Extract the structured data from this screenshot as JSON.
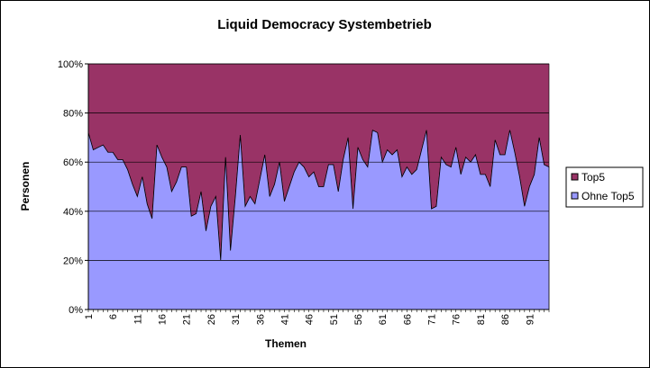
{
  "chart_data": {
    "type": "area",
    "stacked": "percent",
    "title": "Liquid Democracy Systembetrieb",
    "xlabel": "Themen",
    "ylabel": "Personen",
    "ylim": [
      0,
      100
    ],
    "y_ticks": [
      "0%",
      "20%",
      "40%",
      "60%",
      "80%",
      "100%"
    ],
    "x_tick_labels": [
      "1",
      "6",
      "11",
      "16",
      "21",
      "26",
      "31",
      "36",
      "41",
      "46",
      "51",
      "56",
      "61",
      "66",
      "71",
      "76",
      "81",
      "86",
      "91"
    ],
    "x_tick_step": 5,
    "grid": "horizontal major gridlines",
    "plot_background": "#c0c0c0",
    "legend_position": "right",
    "x": [
      1,
      2,
      3,
      4,
      5,
      6,
      7,
      8,
      9,
      10,
      11,
      12,
      13,
      14,
      15,
      16,
      17,
      18,
      19,
      20,
      21,
      22,
      23,
      24,
      25,
      26,
      27,
      28,
      29,
      30,
      31,
      32,
      33,
      34,
      35,
      36,
      37,
      38,
      39,
      40,
      41,
      42,
      43,
      44,
      45,
      46,
      47,
      48,
      49,
      50,
      51,
      52,
      53,
      54,
      55,
      56,
      57,
      58,
      59,
      60,
      61,
      62,
      63,
      64,
      65,
      66,
      67,
      68,
      69,
      70,
      71,
      72,
      73,
      74,
      75,
      76,
      77,
      78,
      79,
      80,
      81,
      82,
      83,
      84,
      85,
      86,
      87,
      88,
      89,
      90,
      91,
      92,
      93,
      94,
      95
    ],
    "series": [
      {
        "name": "Ohne Top5",
        "color": "#9999ff",
        "values": [
          72,
          65,
          66,
          67,
          64,
          64,
          61,
          61,
          57,
          51,
          46,
          54,
          43,
          37,
          67,
          62,
          58,
          48,
          52,
          58,
          58,
          38,
          39,
          48,
          32,
          42,
          46,
          20,
          62,
          24,
          46,
          71,
          42,
          46,
          43,
          53,
          63,
          46,
          51,
          60,
          44,
          50,
          56,
          60,
          58,
          54,
          56,
          50,
          50,
          59,
          59,
          48,
          61,
          70,
          41,
          66,
          61,
          58,
          73,
          72,
          60,
          65,
          63,
          65,
          54,
          58,
          55,
          57,
          65,
          73,
          41,
          42,
          62,
          59,
          58,
          66,
          55,
          62,
          60,
          63,
          55,
          55,
          50,
          69,
          63,
          63,
          73,
          64,
          54,
          42,
          50,
          55,
          70,
          59,
          58
        ]
      },
      {
        "name": "Top5",
        "color": "#993366",
        "values": [
          28,
          35,
          34,
          33,
          36,
          36,
          39,
          39,
          43,
          49,
          54,
          46,
          57,
          63,
          33,
          38,
          42,
          52,
          48,
          42,
          42,
          62,
          61,
          52,
          68,
          58,
          54,
          80,
          38,
          76,
          54,
          29,
          58,
          54,
          57,
          47,
          37,
          54,
          49,
          40,
          56,
          50,
          44,
          40,
          42,
          46,
          44,
          50,
          50,
          41,
          41,
          52,
          39,
          30,
          59,
          34,
          39,
          42,
          27,
          28,
          40,
          35,
          37,
          35,
          46,
          42,
          45,
          43,
          35,
          27,
          59,
          58,
          38,
          41,
          42,
          34,
          45,
          38,
          40,
          37,
          45,
          45,
          50,
          31,
          37,
          37,
          27,
          36,
          46,
          58,
          50,
          45,
          30,
          41,
          42
        ]
      }
    ]
  }
}
